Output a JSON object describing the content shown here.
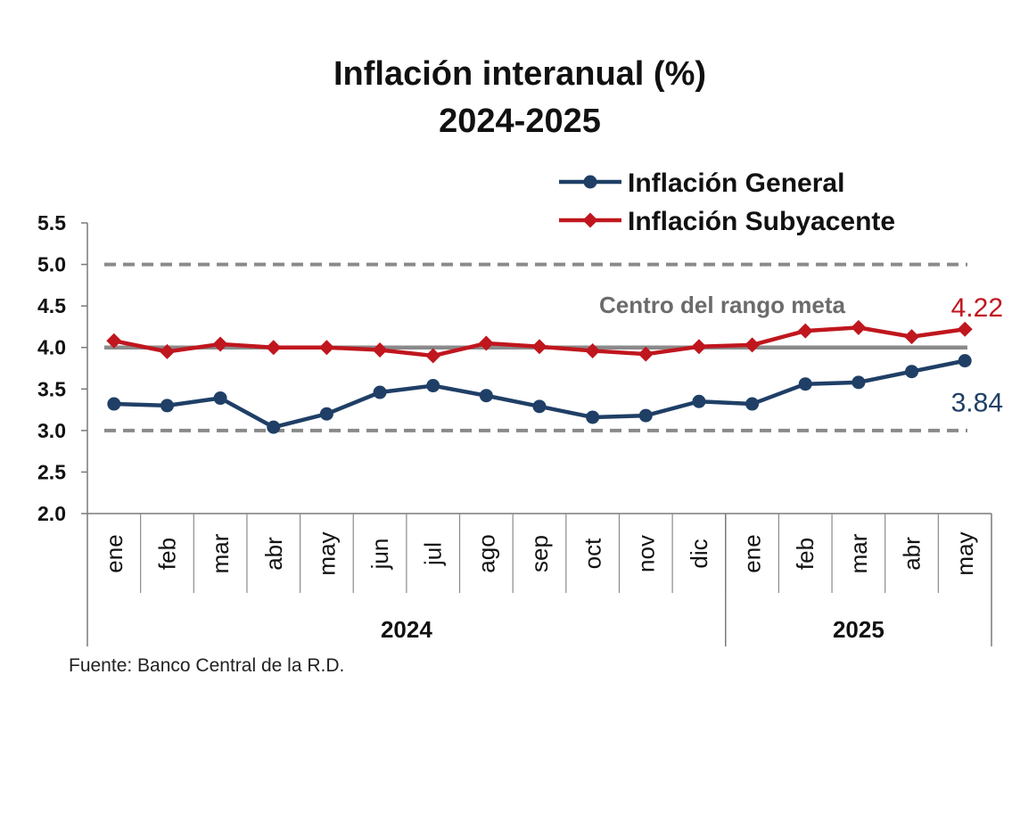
{
  "chart_data": {
    "type": "line",
    "title": "Inflación interanual (%)",
    "subtitle": "2024-2025",
    "categories": [
      "ene",
      "feb",
      "mar",
      "abr",
      "may",
      "jun",
      "jul",
      "ago",
      "sep",
      "oct",
      "nov",
      "dic",
      "ene",
      "feb",
      "mar",
      "abr",
      "may"
    ],
    "year_groups": [
      {
        "label": "2024",
        "count": 12
      },
      {
        "label": "2025",
        "count": 5
      }
    ],
    "ylim": [
      2.0,
      5.5
    ],
    "yticks": [
      "2.0",
      "2.5",
      "3.0",
      "3.5",
      "4.0",
      "4.5",
      "5.0",
      "5.5"
    ],
    "series": [
      {
        "name": "Inflación General",
        "color": "#1f3f66",
        "marker": "circle",
        "values": [
          3.32,
          3.3,
          3.39,
          3.04,
          3.2,
          3.46,
          3.54,
          3.42,
          3.29,
          3.16,
          3.18,
          3.35,
          3.32,
          3.56,
          3.58,
          3.71,
          3.84
        ],
        "end_label": "3.84"
      },
      {
        "name": "Inflación Subyacente",
        "color": "#c0161e",
        "marker": "diamond",
        "values": [
          4.08,
          3.95,
          4.04,
          4.0,
          4.0,
          3.97,
          3.9,
          4.05,
          4.01,
          3.96,
          3.92,
          4.01,
          4.03,
          4.2,
          4.24,
          4.13,
          4.22
        ],
        "end_label": "4.22"
      }
    ],
    "reference_lines": [
      {
        "value": 5.0,
        "style": "dashed",
        "color": "#8a8a8a"
      },
      {
        "value": 4.0,
        "style": "solid",
        "color": "#8a8a8a",
        "label": "Centro del rango meta"
      },
      {
        "value": 3.0,
        "style": "dashed",
        "color": "#8a8a8a"
      }
    ],
    "legend_position": "top-right",
    "grid": false,
    "source": "Fuente: Banco Central de la R.D."
  }
}
